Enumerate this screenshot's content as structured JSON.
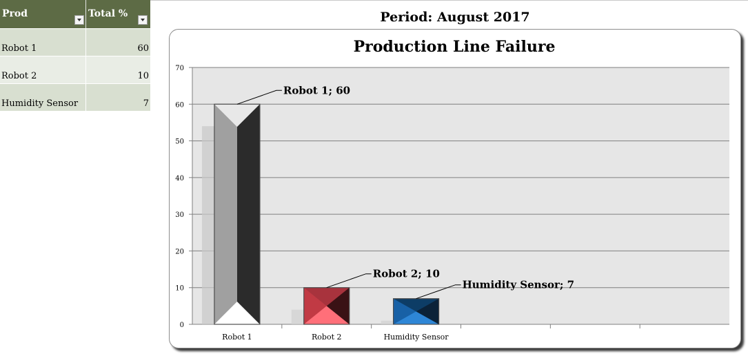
{
  "table": {
    "headers": [
      "Prod",
      "Total %"
    ],
    "rows": [
      {
        "prod": "Robot 1",
        "total": "60"
      },
      {
        "prod": "Robot 2",
        "total": "10"
      },
      {
        "prod": "Humidity Sensor",
        "total": "7"
      }
    ]
  },
  "chart_data": {
    "type": "bar",
    "supertitle": "Period: August 2017",
    "title": "Production Line Failure",
    "categories": [
      "Robot 1",
      "Robot 2",
      "Humidity Sensor"
    ],
    "values": [
      60,
      10,
      7
    ],
    "data_labels": [
      "Robot 1; 60",
      "Robot 2; 10",
      "Humidity Sensor; 7"
    ],
    "ylim": [
      0,
      70
    ],
    "yticks": [
      0,
      10,
      20,
      30,
      40,
      50,
      60,
      70
    ],
    "grid": true,
    "legend": "none",
    "colors": [
      "#9a9a9a",
      "#e04b56",
      "#1f78c8"
    ]
  }
}
